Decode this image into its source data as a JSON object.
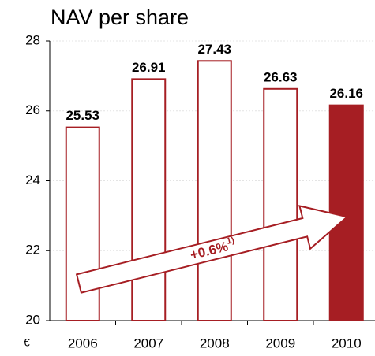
{
  "chart_data": {
    "type": "bar",
    "title": "NAV per share",
    "unit": "€",
    "categories": [
      "2006",
      "2007",
      "2008",
      "2009",
      "2010"
    ],
    "values": [
      25.53,
      26.91,
      27.43,
      26.63,
      26.16
    ],
    "filled": [
      false,
      false,
      false,
      false,
      true
    ],
    "color": "#a61e23",
    "ylim": [
      20,
      28
    ],
    "yticks": [
      20,
      22,
      24,
      26,
      28
    ],
    "grid": true,
    "annotation": {
      "text": "+0.6%",
      "superscript": "1)"
    }
  }
}
